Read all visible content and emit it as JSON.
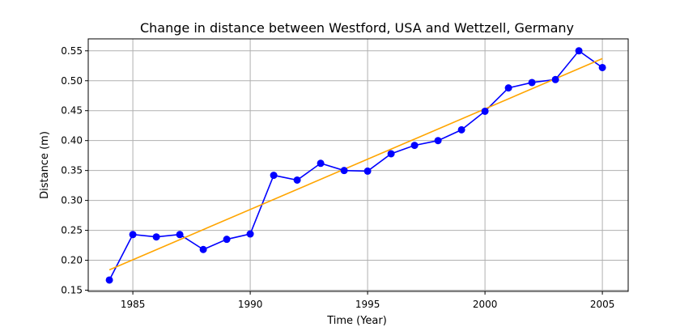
{
  "chart_data": {
    "type": "line",
    "title": "Change in distance between Westford, USA and Wettzell, Germany",
    "xlabel": "Time (Year)",
    "ylabel": "Distance (m)",
    "xlim": [
      1983.1,
      2006.1
    ],
    "ylim": [
      0.148,
      0.57
    ],
    "xticks": [
      1985,
      1990,
      1995,
      2000,
      2005
    ],
    "xtick_labels": [
      "1985",
      "1990",
      "1995",
      "2000",
      "2005"
    ],
    "yticks": [
      0.15,
      0.2,
      0.25,
      0.3,
      0.35,
      0.4,
      0.45,
      0.5,
      0.55
    ],
    "ytick_labels": [
      "0.15",
      "0.20",
      "0.25",
      "0.30",
      "0.35",
      "0.40",
      "0.45",
      "0.50",
      "0.55"
    ],
    "grid": true,
    "series": [
      {
        "kind": "line-markers",
        "color": "#0000ff",
        "x": [
          1984,
          1985,
          1986,
          1987,
          1988,
          1989,
          1990,
          1991,
          1992,
          1993,
          1994,
          1995,
          1996,
          1997,
          1998,
          1999,
          2000,
          2001,
          2002,
          2003,
          2004,
          2005
        ],
        "y": [
          0.167,
          0.243,
          0.239,
          0.243,
          0.218,
          0.235,
          0.244,
          0.342,
          0.334,
          0.362,
          0.35,
          0.349,
          0.378,
          0.392,
          0.4,
          0.418,
          0.449,
          0.488,
          0.497,
          0.502,
          0.55,
          0.522
        ]
      },
      {
        "kind": "trend-line",
        "color": "#ffa500",
        "x": [
          1984,
          2005
        ],
        "y": [
          0.184,
          0.537
        ]
      }
    ]
  }
}
